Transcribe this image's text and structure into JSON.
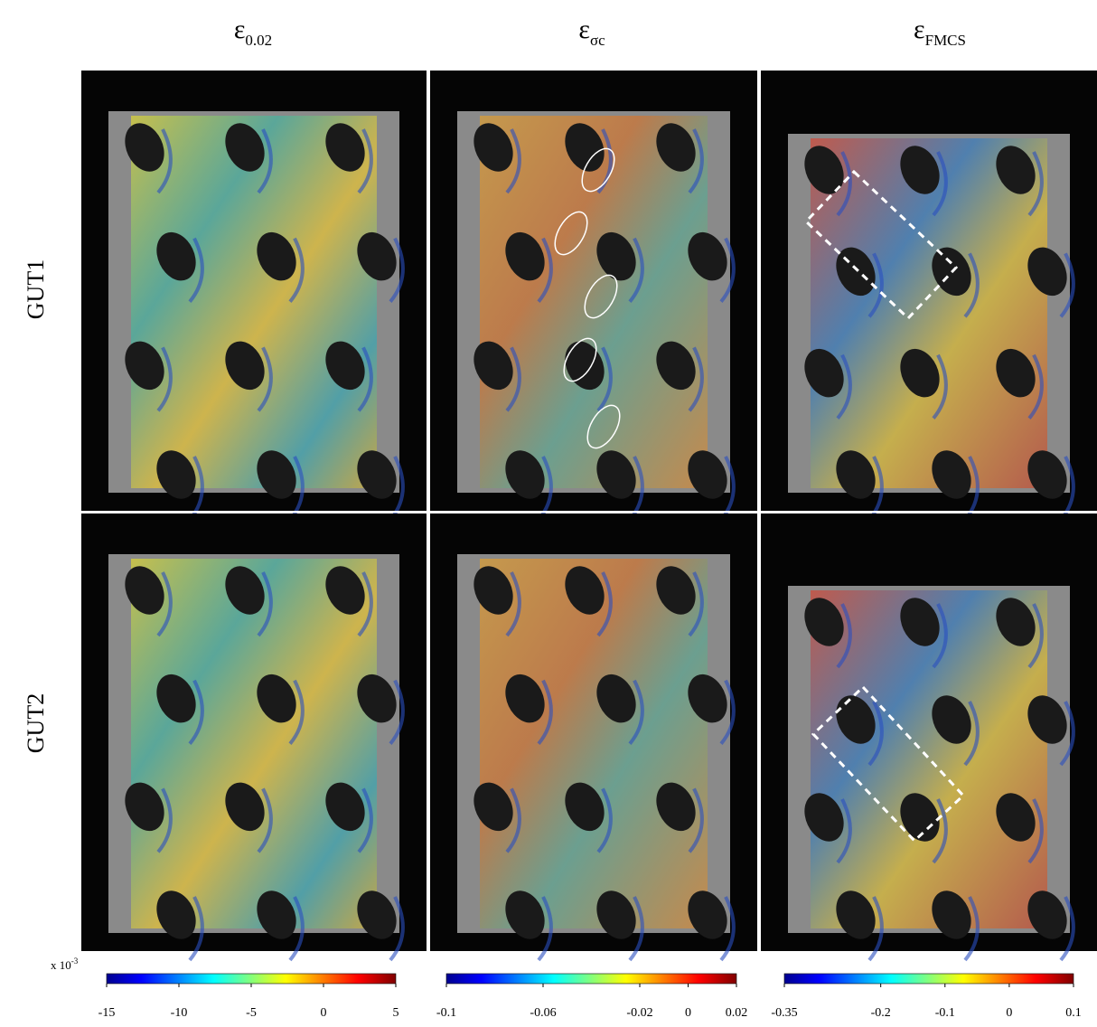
{
  "columns": [
    {
      "symbol": "ε",
      "subscript": "0.02"
    },
    {
      "symbol": "ε",
      "subscript": "σc"
    },
    {
      "symbol": "ε",
      "subscript": "FMCS"
    }
  ],
  "rows": [
    "GUT1",
    "GUT2"
  ],
  "multiplier": {
    "base": "x 10",
    "exponent": "-3"
  },
  "colorbars": [
    {
      "lim": [
        -15,
        5
      ],
      "ticks": [
        -15,
        -10,
        -5,
        0,
        5
      ]
    },
    {
      "lim": [
        -0.1,
        0.02
      ],
      "ticks": [
        -0.1,
        -0.06,
        -0.02,
        0,
        0.02
      ]
    },
    {
      "lim": [
        -0.35,
        0.1
      ],
      "ticks": [
        -0.35,
        -0.2,
        -0.1,
        0,
        0.1
      ]
    }
  ]
}
